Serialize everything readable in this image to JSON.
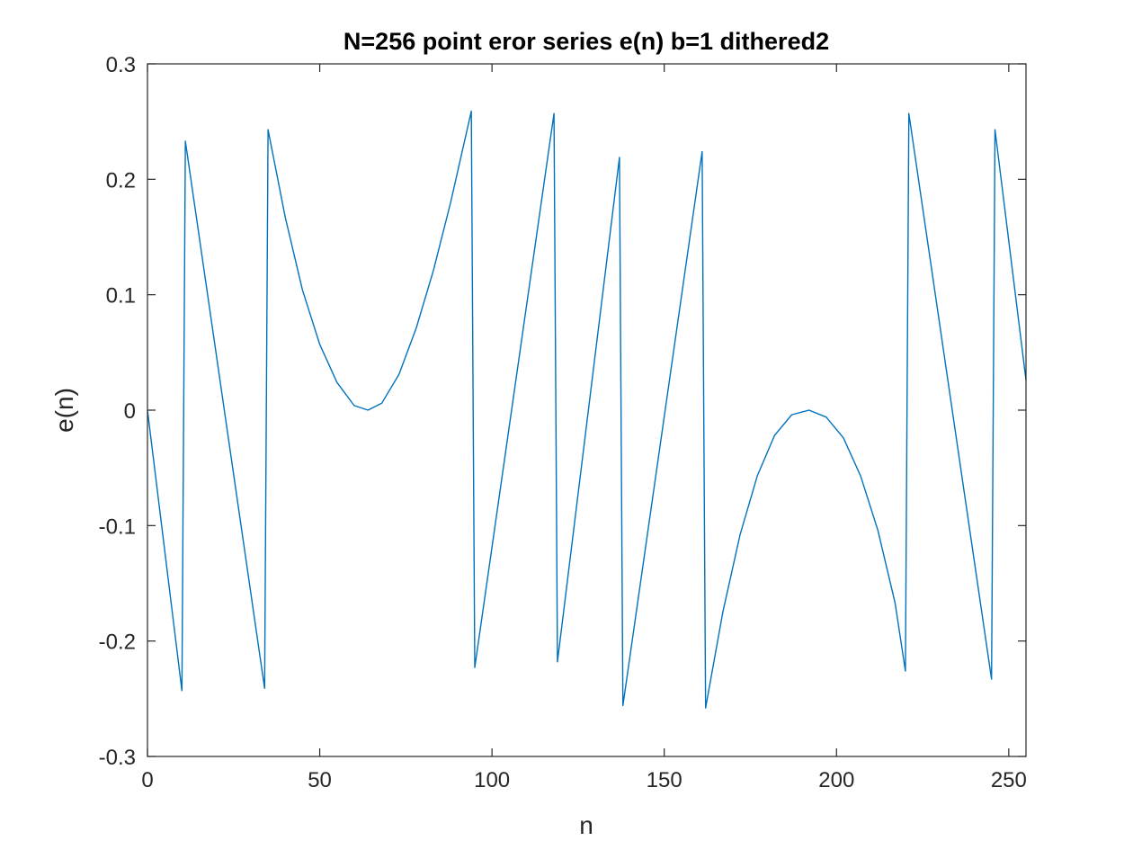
{
  "chart_data": {
    "type": "line",
    "title": "N=256 point eror series e(n) b=1 dithered2",
    "xlabel": "n",
    "ylabel": "e(n)",
    "xlim": [
      0,
      255
    ],
    "ylim": [
      -0.3,
      0.3
    ],
    "x_ticks": [
      0,
      50,
      100,
      150,
      200,
      250
    ],
    "x_tick_labels": [
      "0",
      "50",
      "100",
      "150",
      "200",
      "250"
    ],
    "y_ticks": [
      -0.3,
      -0.2,
      -0.1,
      0,
      0.1,
      0.2,
      0.3
    ],
    "y_tick_labels": [
      "-0.3",
      "-0.2",
      "-0.1",
      "0",
      "0.1",
      "0.2",
      "0.3"
    ],
    "grid": false,
    "series": [
      {
        "color": "#0072BD",
        "x": [
          0,
          10,
          11,
          34,
          35,
          40,
          45,
          50,
          55,
          60,
          64,
          68,
          73,
          78,
          83,
          88,
          94,
          95,
          118,
          119,
          137,
          138,
          161,
          162,
          167,
          172,
          177,
          182,
          187,
          192,
          197,
          202,
          207,
          212,
          217,
          220,
          221,
          245,
          246,
          255
        ],
        "y": [
          0,
          -0.243,
          0.233,
          -0.241,
          0.243,
          0.167,
          0.104,
          0.057,
          0.024,
          0.004,
          0,
          0.006,
          0.031,
          0.071,
          0.121,
          0.18,
          0.259,
          -0.223,
          0.257,
          -0.218,
          0.219,
          -0.256,
          0.224,
          -0.258,
          -0.175,
          -0.108,
          -0.057,
          -0.022,
          -0.004,
          0,
          -0.006,
          -0.024,
          -0.057,
          -0.104,
          -0.167,
          -0.226,
          0.257,
          -0.233,
          0.243,
          0.026
        ]
      }
    ]
  }
}
